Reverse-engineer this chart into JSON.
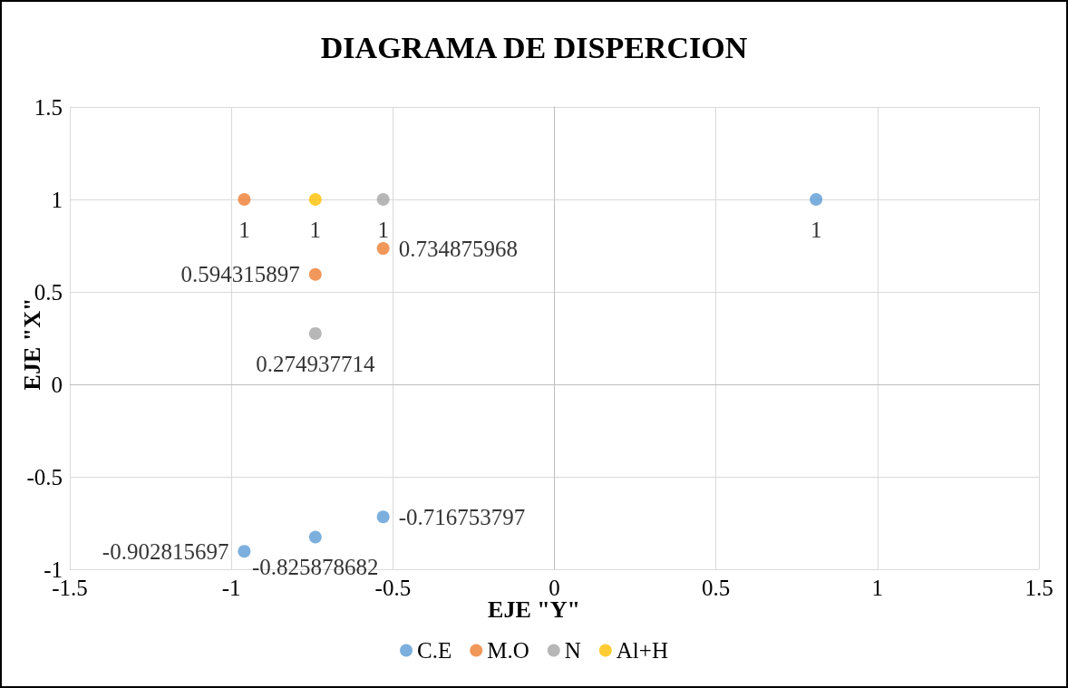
{
  "chart_data": {
    "type": "scatter",
    "title": "DIAGRAMA DE DISPERCION",
    "xlabel": "EJE \"Y\"",
    "ylabel": "EJE \"X\"",
    "series": [
      {
        "name": "C.E",
        "color": "#5b9bd5",
        "x": [
          0.81,
          -0.96,
          -0.74,
          -0.53
        ],
        "values": [
          1,
          -0.902815697,
          -0.825878682,
          -0.716753797
        ]
      },
      {
        "name": "M.O",
        "color": "#ed7d31",
        "x": [
          -0.96,
          -0.74,
          -0.53
        ],
        "values": [
          1,
          0.594315897,
          0.734875968
        ]
      },
      {
        "name": "N",
        "color": "#a5a5a5",
        "x": [
          -0.53,
          -0.74
        ],
        "values": [
          1,
          0.274937714
        ]
      },
      {
        "name": "Al+H",
        "color": "#ffc000",
        "x": [
          -0.74
        ],
        "values": [
          1
        ]
      }
    ],
    "xlim": [
      -1.5,
      1.5
    ],
    "xticks": [
      -1.5,
      -1,
      -0.5,
      0,
      0.5,
      1,
      1.5
    ],
    "ylim": [
      -1,
      1.5
    ],
    "yticks": [
      -1,
      -0.5,
      0,
      0.5,
      1,
      1.5
    ],
    "data_labels": true,
    "grid": true,
    "legend": "bottom",
    "marker": "circle"
  }
}
